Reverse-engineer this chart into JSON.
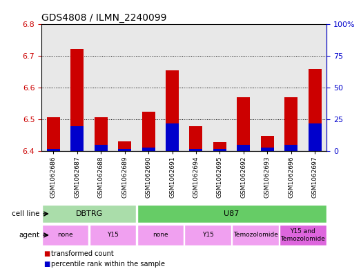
{
  "title": "GDS4808 / ILMN_2240099",
  "samples": [
    "GSM1062686",
    "GSM1062687",
    "GSM1062688",
    "GSM1062689",
    "GSM1062690",
    "GSM1062691",
    "GSM1062694",
    "GSM1062695",
    "GSM1062692",
    "GSM1062693",
    "GSM1062696",
    "GSM1062697"
  ],
  "transformed_count": [
    6.508,
    6.722,
    6.508,
    6.43,
    6.525,
    6.655,
    6.478,
    6.428,
    6.57,
    6.448,
    6.57,
    6.66
  ],
  "percentile_rank": [
    2,
    20,
    5,
    2,
    3,
    22,
    2,
    2,
    5,
    3,
    5,
    22
  ],
  "bar_base": 6.4,
  "ylim_left": [
    6.4,
    6.8
  ],
  "ylim_right": [
    0,
    100
  ],
  "yticks_left": [
    6.4,
    6.5,
    6.6,
    6.7,
    6.8
  ],
  "yticks_right": [
    0,
    25,
    50,
    75,
    100
  ],
  "ytick_right_labels": [
    "0",
    "25",
    "50",
    "75",
    "100%"
  ],
  "grid_lines": [
    6.5,
    6.6,
    6.7
  ],
  "red_color": "#cc0000",
  "blue_color": "#0000cc",
  "bar_width": 0.55,
  "tick_label_color": "#cc0000",
  "right_tick_color": "#0000cc",
  "cell_line_row_label": "cell line",
  "agent_row_label": "agent",
  "legend_red": "transformed count",
  "legend_blue": "percentile rank within the sample",
  "bg_color": "#e8e8e8",
  "cell_green_dbtrg": "#aaddaa",
  "cell_green_u87": "#66cc66",
  "agent_pink_light": "#f0a0f0",
  "agent_pink_dark": "#dd66dd"
}
